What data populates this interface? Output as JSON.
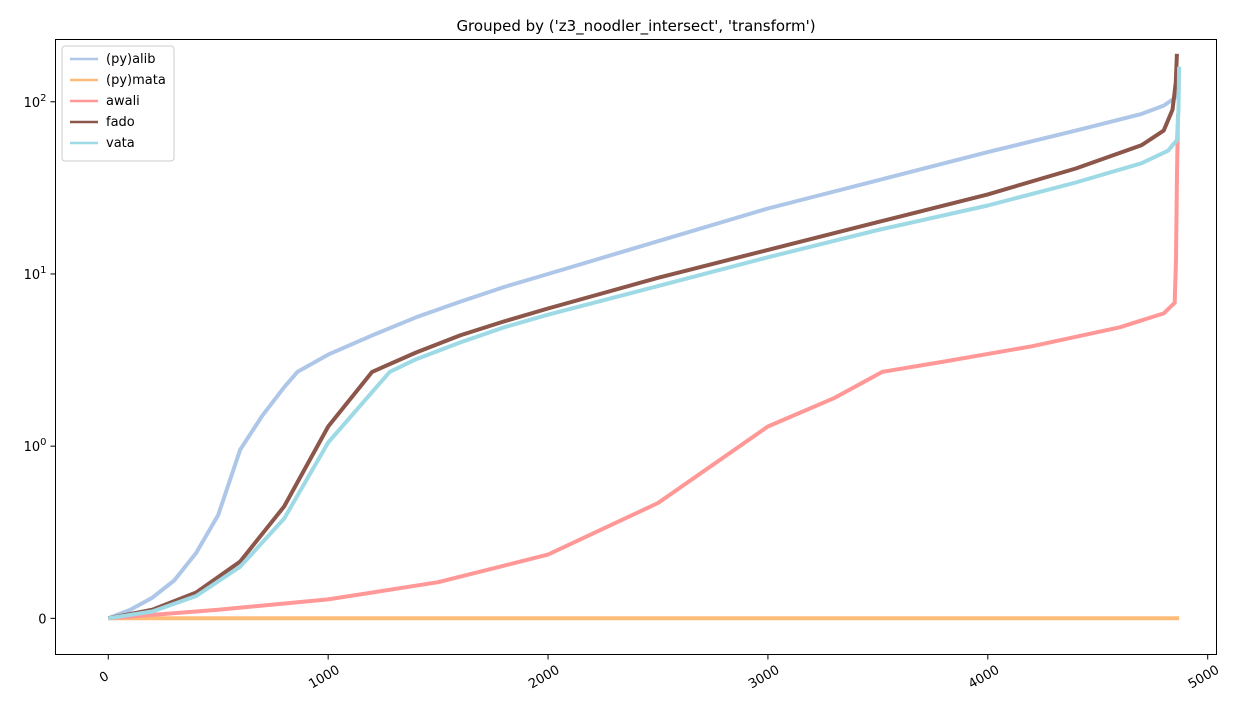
{
  "chart_data": {
    "type": "line",
    "title": "Grouped by ('z3_noodler_intersect', 'transform')",
    "xlabel": "",
    "ylabel": "",
    "xlim": [
      -240,
      5040
    ],
    "yscale": "symlog",
    "ylim": [
      -0.21,
      230
    ],
    "x_ticks": [
      0,
      1000,
      2000,
      3000,
      4000,
      5000
    ],
    "y_ticks": [
      {
        "value": 0,
        "label": "0"
      },
      {
        "value": 1,
        "label": "10^0"
      },
      {
        "value": 10,
        "label": "10^1"
      },
      {
        "value": 100,
        "label": "10^2"
      }
    ],
    "grid": false,
    "legend_position": "top-left",
    "series": [
      {
        "name": "(py)alib",
        "color": "#aec7e8",
        "x": [
          0,
          100,
          200,
          300,
          400,
          500,
          600,
          700,
          800,
          860,
          1000,
          1200,
          1400,
          1600,
          1800,
          2000,
          2500,
          3000,
          3500,
          4000,
          4400,
          4700,
          4800,
          4850,
          4870
        ],
        "y": [
          0,
          0.05,
          0.12,
          0.22,
          0.38,
          0.6,
          0.98,
          1.5,
          2.2,
          2.7,
          3.4,
          4.4,
          5.6,
          6.9,
          8.4,
          10.0,
          15.5,
          24,
          35,
          51,
          68,
          85,
          95,
          105,
          112
        ]
      },
      {
        "name": "(py)mata",
        "color": "#ffbb78",
        "x": [
          0,
          4870
        ],
        "y": [
          0,
          0
        ]
      },
      {
        "name": "awali",
        "color": "#ff9896",
        "x": [
          0,
          500,
          1000,
          1500,
          2000,
          2500,
          3000,
          3300,
          3520,
          3800,
          4200,
          4600,
          4800,
          4850,
          4856,
          4860,
          4865
        ],
        "y": [
          0,
          0.05,
          0.11,
          0.21,
          0.37,
          0.67,
          1.3,
          1.9,
          2.7,
          3.1,
          3.8,
          4.9,
          5.9,
          6.8,
          12,
          35,
          85
        ]
      },
      {
        "name": "fado",
        "color": "#8c564b",
        "x": [
          0,
          200,
          400,
          600,
          800,
          1000,
          1200,
          1400,
          1600,
          1800,
          2000,
          2500,
          3000,
          3500,
          4000,
          4400,
          4700,
          4800,
          4840,
          4855,
          4860
        ],
        "y": [
          0,
          0.05,
          0.15,
          0.33,
          0.65,
          1.3,
          2.7,
          3.5,
          4.4,
          5.3,
          6.3,
          9.5,
          13.8,
          20,
          29,
          41,
          56,
          68,
          90,
          130,
          190
        ]
      },
      {
        "name": "vata",
        "color": "#9edae5",
        "x": [
          0,
          200,
          400,
          600,
          800,
          1000,
          1280,
          1400,
          1600,
          1800,
          2000,
          2500,
          3000,
          3500,
          4000,
          4400,
          4700,
          4820,
          4860,
          4867,
          4870
        ],
        "y": [
          0,
          0.04,
          0.13,
          0.3,
          0.58,
          1.05,
          2.7,
          3.2,
          4.0,
          4.9,
          5.8,
          8.5,
          12.5,
          18,
          25,
          34,
          44,
          52,
          60,
          90,
          160
        ]
      }
    ]
  }
}
